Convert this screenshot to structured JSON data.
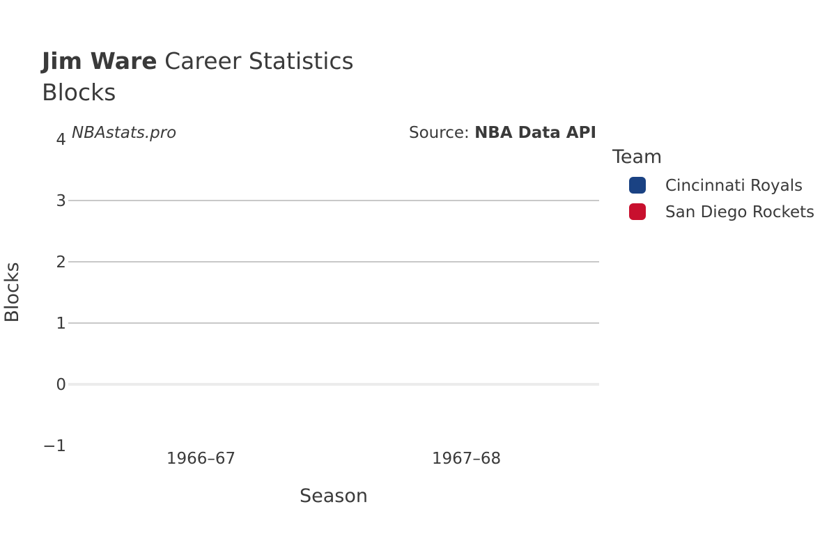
{
  "header": {
    "player_name": "Jim Ware",
    "title_rest": "Career Statistics",
    "subtitle": "Blocks",
    "watermark": "NBAstats.pro",
    "source_prefix": "Source:",
    "source_name": "NBA Data API"
  },
  "legend": {
    "title": "Team",
    "items": [
      {
        "label": "Cincinnati Royals",
        "color": "#1a4283"
      },
      {
        "label": "San Diego Rockets",
        "color": "#c8102e"
      }
    ]
  },
  "chart_data": {
    "type": "bar",
    "title": "Jim Ware Career Statistics",
    "subtitle": "Blocks",
    "xlabel": "Season",
    "ylabel": "Blocks",
    "categories": [
      "1966–67",
      "1967–68"
    ],
    "series": [
      {
        "name": "Cincinnati Royals",
        "values": [
          null,
          null
        ]
      },
      {
        "name": "San Diego Rockets",
        "values": [
          null,
          null
        ]
      }
    ],
    "ylim": [
      -1,
      4
    ],
    "yticks": [
      {
        "value": -1,
        "label": "−1"
      },
      {
        "value": 0,
        "label": "0"
      },
      {
        "value": 1,
        "label": "1"
      },
      {
        "value": 2,
        "label": "2"
      },
      {
        "value": 3,
        "label": "3"
      },
      {
        "value": 4,
        "label": "4"
      }
    ],
    "grid": true,
    "legend_position": "right"
  }
}
